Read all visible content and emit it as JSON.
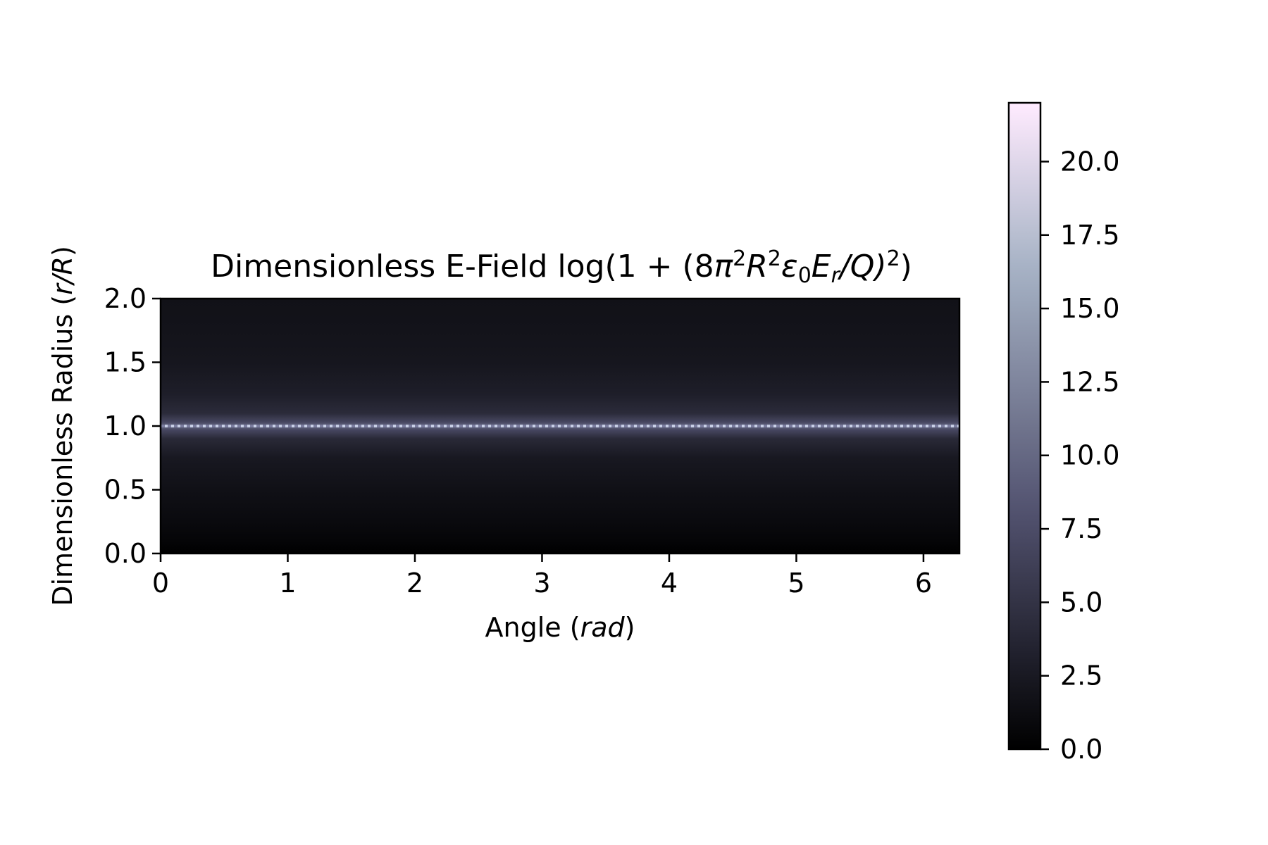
{
  "chart_data": {
    "type": "heatmap",
    "title": {
      "prefix": "Dimensionless E-Field log(1 + (8",
      "pi": "π",
      "sup2": "2",
      "R": "R",
      "eps": "ε",
      "sub0": "0",
      "E": "E",
      "subr": "r",
      "slashQ": "/Q)",
      "close": ")"
    },
    "xlabel": {
      "text": "Angle (",
      "italic": "rad",
      "close": ")"
    },
    "ylabel": {
      "text": "Dimensionless Radius (",
      "italic": "r/R",
      "close": ")"
    },
    "x_ticks": [
      "0",
      "1",
      "2",
      "3",
      "4",
      "5",
      "6"
    ],
    "x_tick_values": [
      0,
      1,
      2,
      3,
      4,
      5,
      6
    ],
    "y_ticks": [
      "0.0",
      "0.5",
      "1.0",
      "1.5",
      "2.0"
    ],
    "y_tick_values": [
      0.0,
      0.5,
      1.0,
      1.5,
      2.0
    ],
    "xlim": [
      0,
      6.283
    ],
    "ylim": [
      0,
      2
    ],
    "field": {
      "description_of_values": "uniform in angle; peak at radius 1.0, decaying away from it",
      "profile_radius": [
        0.0,
        0.1,
        0.25,
        0.5,
        0.75,
        0.9,
        0.97,
        1.0,
        1.03,
        1.1,
        1.25,
        1.5,
        1.75,
        2.0
      ],
      "profile_value": [
        0.0,
        0.5,
        1.0,
        1.6,
        2.4,
        4.0,
        7.0,
        10.0,
        7.0,
        4.2,
        3.0,
        2.2,
        1.9,
        1.7
      ]
    },
    "colorbar": {
      "colormap": "bone",
      "vmin": 0,
      "vmax": 22,
      "ticks": [
        "0.0",
        "2.5",
        "5.0",
        "7.5",
        "10.0",
        "12.5",
        "15.0",
        "17.5",
        "20.0"
      ],
      "tick_values": [
        0.0,
        2.5,
        5.0,
        7.5,
        10.0,
        12.5,
        15.0,
        17.5,
        20.0
      ]
    }
  }
}
